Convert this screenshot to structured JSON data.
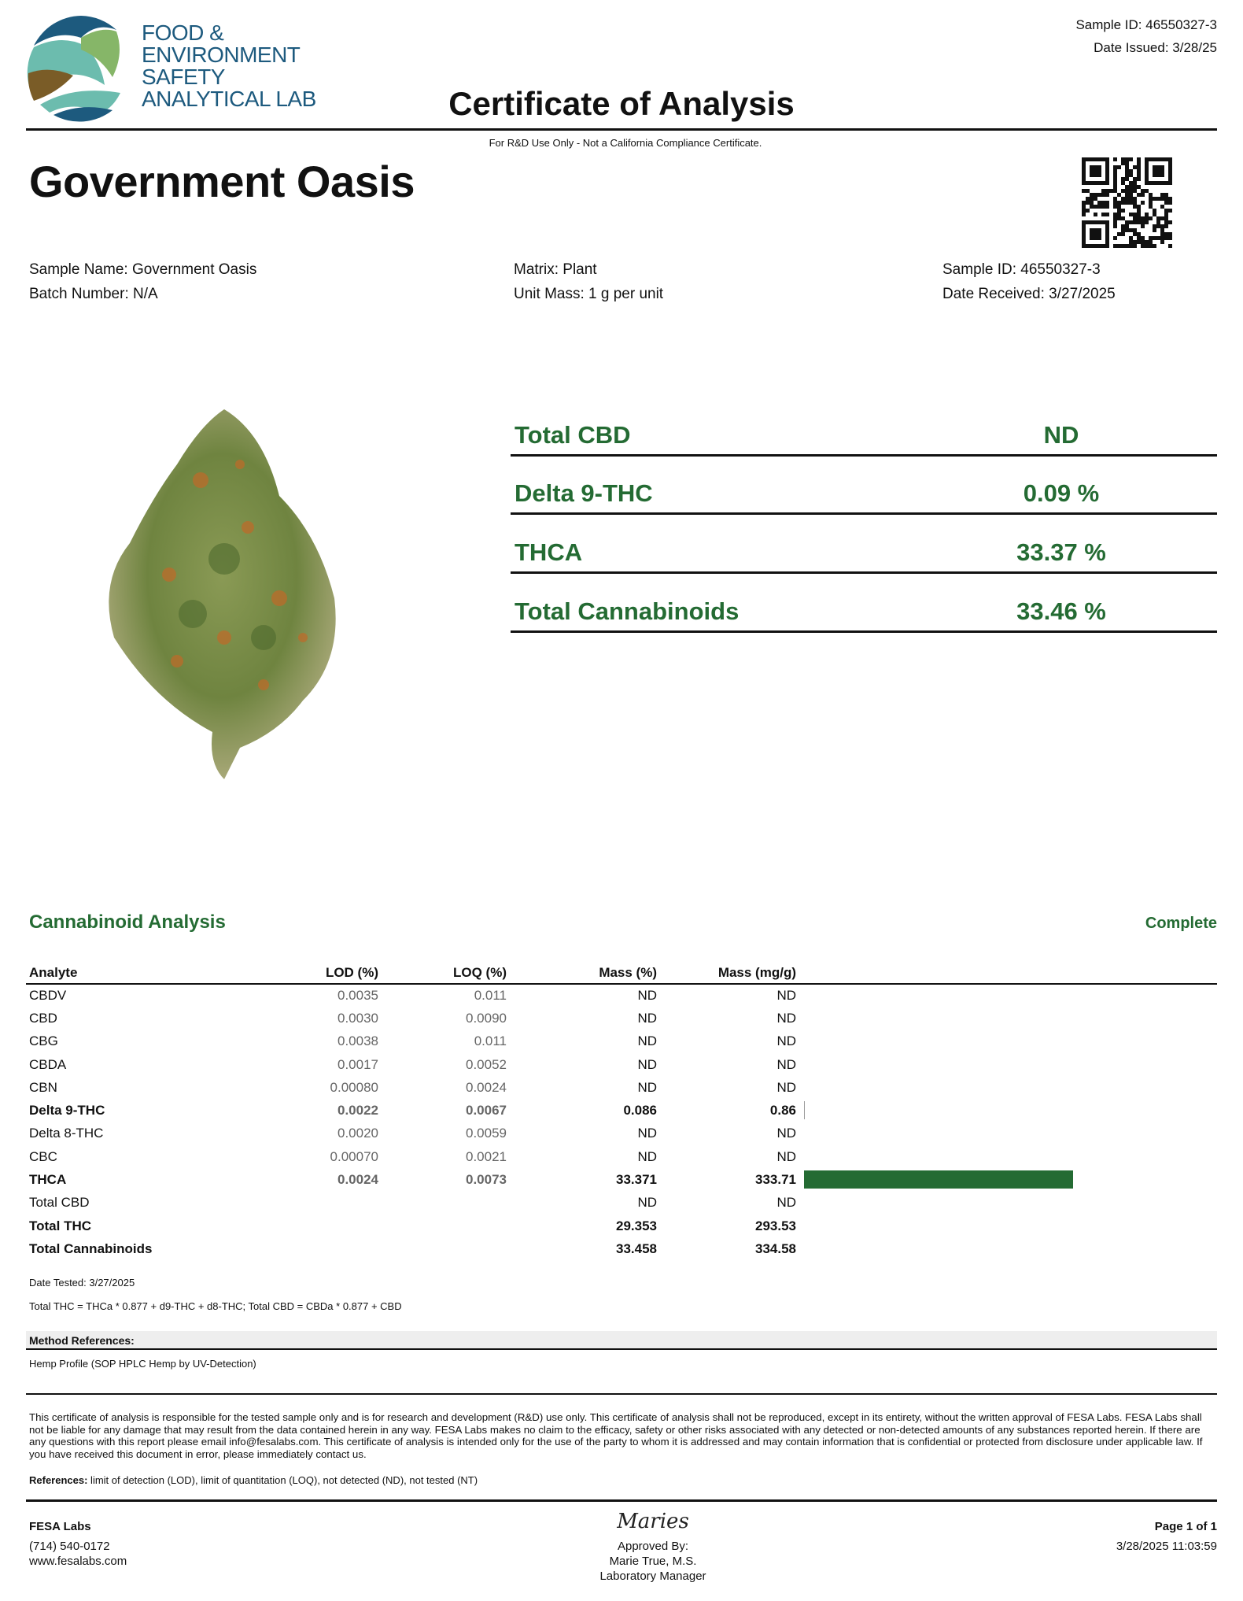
{
  "header": {
    "logo_text": [
      "FOOD &",
      "ENVIRONMENT",
      "SAFETY",
      "ANALYTICAL LAB"
    ],
    "sample_id": "Sample ID: 46550327-3",
    "date_issued": "Date Issued: 3/28/25",
    "title": "Certificate of Analysis",
    "note": "For R&D Use Only - Not a California Compliance Certificate."
  },
  "product_name": "Government Oasis",
  "info": {
    "sample_name": "Sample Name: Government Oasis",
    "batch_number": "Batch Number: N/A",
    "matrix": "Matrix: Plant",
    "unit_mass": "Unit Mass: 1 g per unit",
    "sample_id": "Sample ID: 46550327-3",
    "date_received": "Date Received: 3/27/2025"
  },
  "summary": [
    {
      "label": "Total CBD",
      "value": "ND"
    },
    {
      "label": "Delta 9-THC",
      "value": "0.09 %"
    },
    {
      "label": "THCA",
      "value": "33.37 %"
    },
    {
      "label": "Total Cannabinoids",
      "value": "33.46 %"
    }
  ],
  "analysis": {
    "title": "Cannabinoid Analysis",
    "status": "Complete",
    "accent": "#246b33",
    "columns": [
      "Analyte",
      "LOD (%)",
      "LOQ (%)",
      "Mass (%)",
      "Mass (mg/g)"
    ],
    "rows": [
      {
        "analyte": "CBDV",
        "lod": "0.0035",
        "loq": "0.011",
        "mass_pct": "ND",
        "mass_mg": "ND",
        "bold": false,
        "bar": 0
      },
      {
        "analyte": "CBD",
        "lod": "0.0030",
        "loq": "0.0090",
        "mass_pct": "ND",
        "mass_mg": "ND",
        "bold": false,
        "bar": 0
      },
      {
        "analyte": "CBG",
        "lod": "0.0038",
        "loq": "0.011",
        "mass_pct": "ND",
        "mass_mg": "ND",
        "bold": false,
        "bar": 0
      },
      {
        "analyte": "CBDA",
        "lod": "0.0017",
        "loq": "0.0052",
        "mass_pct": "ND",
        "mass_mg": "ND",
        "bold": false,
        "bar": 0
      },
      {
        "analyte": "CBN",
        "lod": "0.00080",
        "loq": "0.0024",
        "mass_pct": "ND",
        "mass_mg": "ND",
        "bold": false,
        "bar": 0
      },
      {
        "analyte": "Delta 9-THC",
        "lod": "0.0022",
        "loq": "0.0067",
        "mass_pct": "0.086",
        "mass_mg": "0.86",
        "bold": true,
        "bar": 0.86
      },
      {
        "analyte": "Delta 8-THC",
        "lod": "0.0020",
        "loq": "0.0059",
        "mass_pct": "ND",
        "mass_mg": "ND",
        "bold": false,
        "bar": 0
      },
      {
        "analyte": "CBC",
        "lod": "0.00070",
        "loq": "0.0021",
        "mass_pct": "ND",
        "mass_mg": "ND",
        "bold": false,
        "bar": 0
      },
      {
        "analyte": "THCA",
        "lod": "0.0024",
        "loq": "0.0073",
        "mass_pct": "33.371",
        "mass_mg": "333.71",
        "bold": true,
        "bar": 333.71
      },
      {
        "analyte": "Total CBD",
        "lod": "",
        "loq": "",
        "mass_pct": "ND",
        "mass_mg": "ND",
        "bold": false,
        "bar": 0
      },
      {
        "analyte": "Total THC",
        "lod": "",
        "loq": "",
        "mass_pct": "29.353",
        "mass_mg": "293.53",
        "bold": true,
        "bar": 0
      },
      {
        "analyte": "Total Cannabinoids",
        "lod": "",
        "loq": "",
        "mass_pct": "33.458",
        "mass_mg": "334.58",
        "bold": true,
        "bar": 0
      }
    ],
    "date_tested": "Date Tested: 3/27/2025",
    "formula": "Total THC = THCa * 0.877 + d9-THC + d8-THC; Total CBD = CBDa * 0.877 + CBD",
    "method_title": "Method References:",
    "method": "Hemp Profile (SOP HPLC Hemp by UV-Detection)"
  },
  "disclaimer": "This certificate of analysis is responsible for the tested sample only and is for research and development (R&D) use only. This certificate of analysis shall not be reproduced, except in its entirety, without the written approval of FESA Labs. FESA Labs shall not be liable for any damage that may result from the data contained herein in any way. FESA Labs makes no claim to the efficacy, safety or other risks associated with any detected or non-detected amounts of any substances reported herein. If there are any questions with this report please email info@fesalabs.com. This certificate of analysis is intended only for the use of the party to whom it is addressed and may contain information that is confidential or protected from disclosure under applicable law. If you have received this document in error, please immediately contact us.",
  "references_label": "References:",
  "references": " limit of detection (LOD), limit of quantitation (LOQ), not detected (ND), not tested (NT)",
  "footer": {
    "company": "FESA Labs",
    "phone": "(714) 540-0172",
    "website": "www.fesalabs.com",
    "signature": "Maries",
    "approved_by": "Approved By:",
    "approver": "Marie True, M.S.",
    "approver_title": "Laboratory Manager",
    "page": "Page 1 of 1",
    "timestamp": "3/28/2025 11:03:59"
  }
}
